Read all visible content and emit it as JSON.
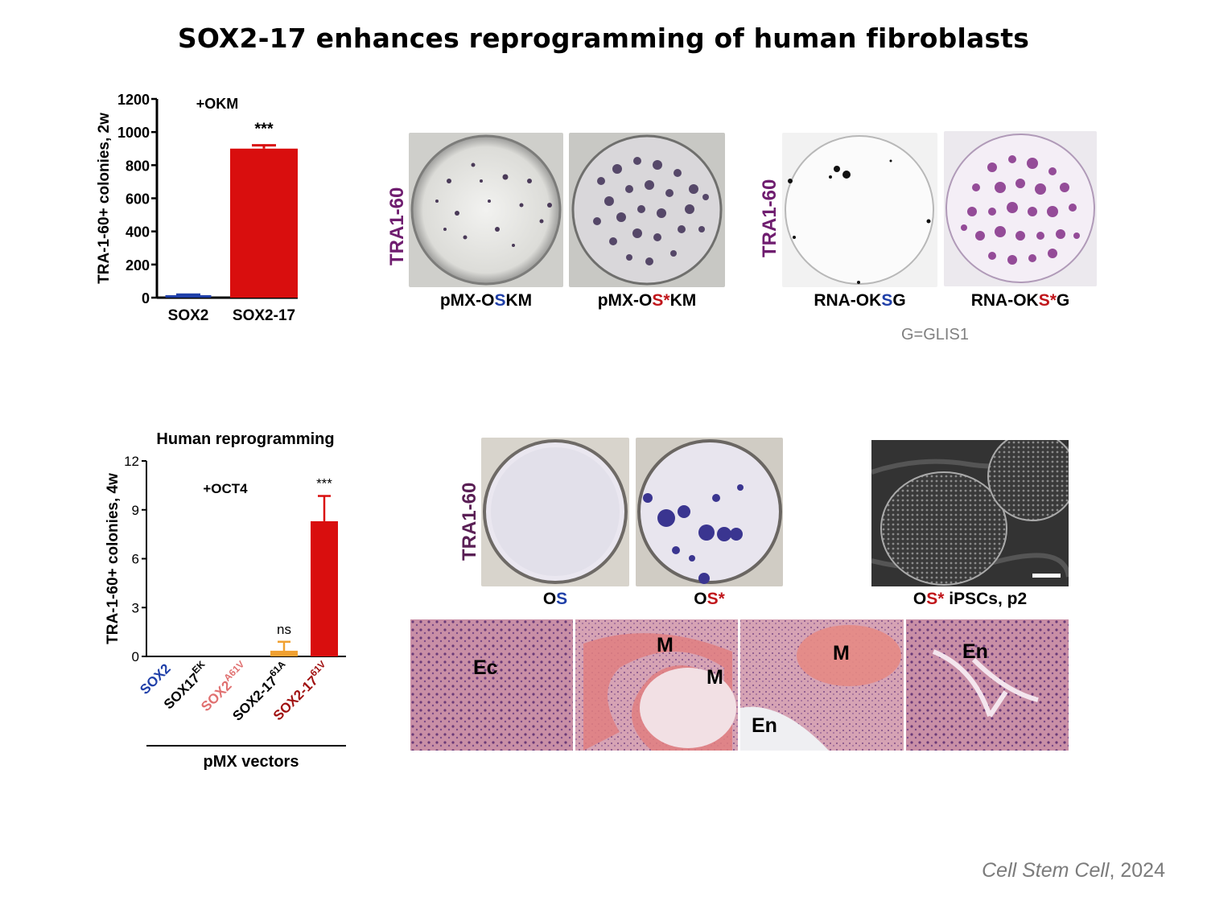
{
  "title": "SOX2-17 enhances reprogramming of human fibroblasts",
  "colors": {
    "sox2_blue": "#1f3fa8",
    "sox17_red": "#d90e0e",
    "orange": "#f0a030",
    "pink_label": "#e07070",
    "darkred_label": "#a01010",
    "purple_label": "#6f1d6f"
  },
  "chart_data": [
    {
      "type": "bar",
      "title": "",
      "annotation": "+OKM",
      "ylabel": "TRA-1-60+ colonies, 2w",
      "xlabel": "",
      "ylim": [
        0,
        1200
      ],
      "yticks": [
        "0",
        "200",
        "400",
        "600",
        "800",
        "1000",
        "1200"
      ],
      "categories": [
        "SOX2",
        "SOX2-17"
      ],
      "values": [
        15,
        900
      ],
      "errors": [
        3,
        20
      ],
      "significance": [
        "",
        "***"
      ]
    },
    {
      "type": "bar",
      "title": "Human reprogramming",
      "annotation": "+OCT4",
      "ylabel": "TRA-1-60+ colonies, 4w",
      "xlabel": "pMX vectors",
      "ylim": [
        0,
        12
      ],
      "yticks": [
        "0",
        "3",
        "6",
        "9",
        "12"
      ],
      "categories": [
        {
          "base": "SOX2",
          "sup": ""
        },
        {
          "base": "SOX17",
          "sup": "EK"
        },
        {
          "base": "SOX2",
          "sup": "A61V"
        },
        {
          "base": "SOX2-17",
          "sup": "61A"
        },
        {
          "base": "SOX2-17",
          "sup": "61V"
        }
      ],
      "values": [
        0,
        0,
        0,
        0.35,
        8.3
      ],
      "errors": [
        0,
        0,
        0,
        0.55,
        1.55
      ],
      "significance": [
        "",
        "",
        "",
        "ns",
        "***"
      ]
    }
  ],
  "top_plates": {
    "side_label": "TRA1-60",
    "group1": [
      {
        "pre": "pMX-O",
        "s": "S",
        "star": "",
        "post": "KM"
      },
      {
        "pre": "pMX-O",
        "s": "S",
        "star": "*",
        "post": "KM"
      }
    ],
    "group2": [
      {
        "pre": "RNA-OK",
        "s": "S",
        "star": "",
        "post": "G"
      },
      {
        "pre": "RNA-OK",
        "s": "S",
        "star": "*",
        "post": "G"
      }
    ],
    "note": "G=GLIS1"
  },
  "bottom_plates": {
    "side_label": "TRA1-60",
    "items": [
      {
        "pre": "O",
        "s": "S",
        "star": "",
        "post": ""
      },
      {
        "pre": "O",
        "s": "S",
        "star": "*",
        "post": ""
      }
    ],
    "ipsc_label": {
      "pre": "O",
      "s": "S",
      "star": "*",
      "post": " iPSCs, p2"
    }
  },
  "histology": {
    "panels": [
      {
        "labels": [
          "Ec"
        ]
      },
      {
        "labels": [
          "M",
          "M"
        ]
      },
      {
        "labels": [
          "M",
          "En"
        ]
      },
      {
        "labels": [
          "En"
        ]
      }
    ]
  },
  "citation": {
    "journal": "Cell Stem Cell",
    "year": ", 2024"
  }
}
